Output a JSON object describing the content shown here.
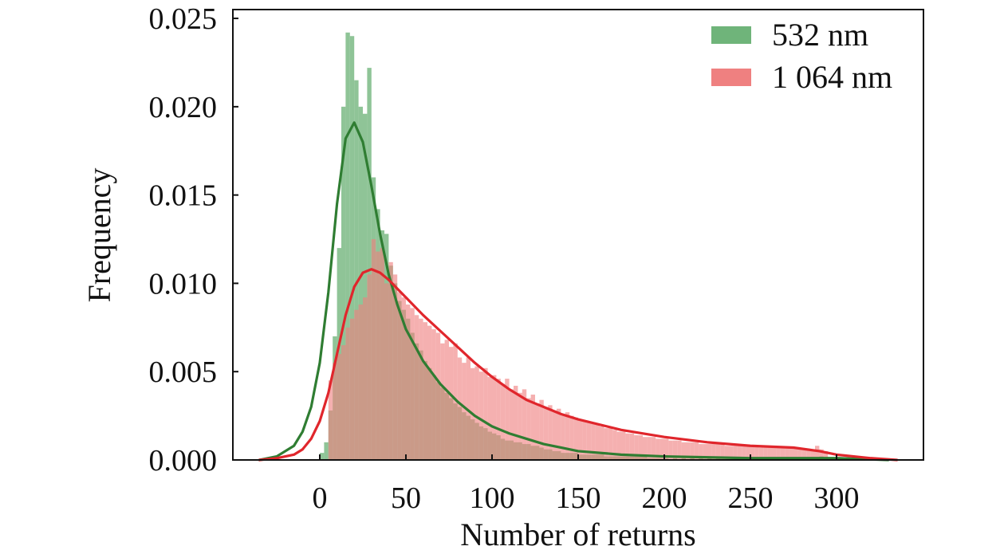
{
  "chart_data": {
    "type": "histogram",
    "xlabel": "Number of returns",
    "ylabel": "Frequency",
    "xlim": [
      -50,
      350
    ],
    "ylim": [
      0,
      0.0255
    ],
    "xticks": [
      0,
      50,
      100,
      150,
      200,
      250,
      300
    ],
    "xtick_labels": [
      "0",
      "50",
      "100",
      "150",
      "200",
      "250",
      "300"
    ],
    "yticks": [
      0,
      0.005,
      0.01,
      0.015,
      0.02,
      0.025
    ],
    "ytick_labels": [
      "0.000",
      "0.005",
      "0.010",
      "0.015",
      "0.020",
      "0.025"
    ],
    "legend_position": "top-right",
    "series": [
      {
        "name": "532 nm",
        "bar_color": "#6fb47a",
        "line_color": "#2f7d32",
        "bin_width": 2.5,
        "bins": [
          [
            0,
            0.0004
          ],
          [
            2.5,
            0.001
          ],
          [
            5,
            0.0028
          ],
          [
            7.5,
            0.007
          ],
          [
            10,
            0.012
          ],
          [
            12.5,
            0.02
          ],
          [
            15,
            0.0242
          ],
          [
            17.5,
            0.024
          ],
          [
            20,
            0.0215
          ],
          [
            22.5,
            0.02
          ],
          [
            25,
            0.0196
          ],
          [
            27.5,
            0.0222
          ],
          [
            30,
            0.016
          ],
          [
            32.5,
            0.0142
          ],
          [
            35,
            0.013
          ],
          [
            37.5,
            0.0128
          ],
          [
            40,
            0.011
          ],
          [
            42.5,
            0.01
          ],
          [
            45,
            0.009
          ],
          [
            47.5,
            0.0085
          ],
          [
            50,
            0.008
          ],
          [
            52.5,
            0.0072
          ],
          [
            55,
            0.0066
          ],
          [
            57.5,
            0.0062
          ],
          [
            60,
            0.0056
          ],
          [
            62.5,
            0.0052
          ],
          [
            65,
            0.0048
          ],
          [
            67.5,
            0.0044
          ],
          [
            70,
            0.0041
          ],
          [
            72.5,
            0.0038
          ],
          [
            75,
            0.0035
          ],
          [
            77.5,
            0.0032
          ],
          [
            80,
            0.003
          ],
          [
            82.5,
            0.0027
          ],
          [
            85,
            0.0025
          ],
          [
            87.5,
            0.0023
          ],
          [
            90,
            0.0021
          ],
          [
            92.5,
            0.0019
          ],
          [
            95,
            0.0018
          ],
          [
            97.5,
            0.0016
          ],
          [
            100,
            0.0015
          ],
          [
            102.5,
            0.0014
          ],
          [
            105,
            0.0012
          ],
          [
            107.5,
            0.0011
          ],
          [
            110,
            0.0011
          ],
          [
            112.5,
            0.001
          ],
          [
            115,
            0.001
          ],
          [
            117.5,
            0.0009
          ],
          [
            120,
            0.0009
          ],
          [
            122.5,
            0.0008
          ],
          [
            125,
            0.0008
          ],
          [
            127.5,
            0.0007
          ],
          [
            130,
            0.0006
          ],
          [
            132.5,
            0.0006
          ],
          [
            135,
            0.0005
          ],
          [
            137.5,
            0.0005
          ],
          [
            140,
            0.0004
          ],
          [
            142.5,
            0.0004
          ],
          [
            145,
            0.0004
          ],
          [
            147.5,
            0.0004
          ],
          [
            150,
            0.0003
          ],
          [
            152.5,
            0.0003
          ],
          [
            155,
            0.0003
          ],
          [
            157.5,
            0.0003
          ],
          [
            160,
            0.0003
          ],
          [
            162.5,
            0.0003
          ],
          [
            165,
            0.0002
          ],
          [
            167.5,
            0.0002
          ],
          [
            170,
            0.0002
          ],
          [
            172.5,
            0.0002
          ],
          [
            175,
            0.0002
          ],
          [
            177.5,
            0.0002
          ],
          [
            180,
            0.0002
          ],
          [
            182.5,
            0.0002
          ],
          [
            185,
            0.0002
          ],
          [
            187.5,
            0.0002
          ],
          [
            190,
            0.0001
          ],
          [
            192.5,
            0.0001
          ],
          [
            195,
            0.0001
          ],
          [
            197.5,
            0.0001
          ],
          [
            200,
            0.0001
          ],
          [
            205,
            0.0001
          ],
          [
            210,
            0.0001
          ],
          [
            215,
            0.0001
          ],
          [
            220,
            0.0001
          ],
          [
            225,
            0.0001
          ],
          [
            230,
            0.0001
          ],
          [
            240,
            0.0001
          ],
          [
            250,
            0.0001
          ],
          [
            260,
            0.0001
          ],
          [
            270,
            0.0001
          ],
          [
            280,
            0.0001
          ],
          [
            290,
            0.0002
          ]
        ],
        "kde": {
          "x": [
            -35,
            -25,
            -15,
            -10,
            -5,
            0,
            5,
            10,
            15,
            20,
            25,
            30,
            35,
            40,
            45,
            50,
            60,
            70,
            80,
            90,
            100,
            110,
            120,
            130,
            140,
            150,
            175,
            200,
            250,
            300,
            330
          ],
          "y": [
            0.0,
            0.0002,
            0.0008,
            0.0016,
            0.003,
            0.0055,
            0.0095,
            0.0145,
            0.0182,
            0.0191,
            0.018,
            0.0155,
            0.0128,
            0.0105,
            0.0088,
            0.0074,
            0.0056,
            0.0043,
            0.0033,
            0.0025,
            0.0019,
            0.0015,
            0.0012,
            0.0009,
            0.0007,
            0.0005,
            0.0003,
            0.0002,
            0.0001,
            0.0001,
            0.0
          ]
        }
      },
      {
        "name": "1 064 nm",
        "bar_color": "#ef8080",
        "line_color": "#e0262c",
        "bin_width": 2.5,
        "bins": [
          [
            5,
            0.0045
          ],
          [
            7.5,
            0.0055
          ],
          [
            10,
            0.006
          ],
          [
            12.5,
            0.0065
          ],
          [
            15,
            0.0075
          ],
          [
            17.5,
            0.008
          ],
          [
            20,
            0.0085
          ],
          [
            22.5,
            0.0088
          ],
          [
            25,
            0.0092
          ],
          [
            27.5,
            0.0105
          ],
          [
            30,
            0.0125
          ],
          [
            32.5,
            0.0118
          ],
          [
            35,
            0.012
          ],
          [
            37.5,
            0.01
          ],
          [
            40,
            0.0112
          ],
          [
            42.5,
            0.0105
          ],
          [
            45,
            0.0095
          ],
          [
            47.5,
            0.0092
          ],
          [
            50,
            0.0088
          ],
          [
            52.5,
            0.0086
          ],
          [
            55,
            0.0082
          ],
          [
            57.5,
            0.008
          ],
          [
            60,
            0.0078
          ],
          [
            62.5,
            0.0076
          ],
          [
            65,
            0.0074
          ],
          [
            67.5,
            0.0072
          ],
          [
            70,
            0.0066
          ],
          [
            72.5,
            0.0068
          ],
          [
            75,
            0.0064
          ],
          [
            77.5,
            0.0066
          ],
          [
            80,
            0.0058
          ],
          [
            82.5,
            0.0055
          ],
          [
            85,
            0.0058
          ],
          [
            87.5,
            0.0052
          ],
          [
            90,
            0.0053
          ],
          [
            92.5,
            0.005
          ],
          [
            95,
            0.0052
          ],
          [
            97.5,
            0.0047
          ],
          [
            100,
            0.0048
          ],
          [
            102.5,
            0.0046
          ],
          [
            105,
            0.0043
          ],
          [
            107.5,
            0.0046
          ],
          [
            110,
            0.004
          ],
          [
            112.5,
            0.0042
          ],
          [
            115,
            0.0038
          ],
          [
            117.5,
            0.004
          ],
          [
            120,
            0.0035
          ],
          [
            122.5,
            0.0037
          ],
          [
            125,
            0.0032
          ],
          [
            127.5,
            0.0034
          ],
          [
            130,
            0.003
          ],
          [
            132.5,
            0.0031
          ],
          [
            135,
            0.0028
          ],
          [
            137.5,
            0.0029
          ],
          [
            140,
            0.0026
          ],
          [
            142.5,
            0.0027
          ],
          [
            145,
            0.0025
          ],
          [
            147.5,
            0.0024
          ],
          [
            150,
            0.0023
          ],
          [
            152.5,
            0.0022
          ],
          [
            155,
            0.0021
          ],
          [
            157.5,
            0.0021
          ],
          [
            160,
            0.002
          ],
          [
            162.5,
            0.0019
          ],
          [
            165,
            0.0018
          ],
          [
            167.5,
            0.0018
          ],
          [
            170,
            0.0017
          ],
          [
            172.5,
            0.0016
          ],
          [
            175,
            0.0016
          ],
          [
            177.5,
            0.0015
          ],
          [
            180,
            0.0015
          ],
          [
            182.5,
            0.0014
          ],
          [
            185,
            0.0014
          ],
          [
            187.5,
            0.0013
          ],
          [
            190,
            0.0013
          ],
          [
            192.5,
            0.0013
          ],
          [
            195,
            0.0012
          ],
          [
            197.5,
            0.0012
          ],
          [
            200,
            0.0012
          ],
          [
            202.5,
            0.0011
          ],
          [
            205,
            0.0011
          ],
          [
            207.5,
            0.0011
          ],
          [
            210,
            0.001
          ],
          [
            212.5,
            0.001
          ],
          [
            215,
            0.001
          ],
          [
            217.5,
            0.001
          ],
          [
            220,
            0.0009
          ],
          [
            222.5,
            0.0009
          ],
          [
            225,
            0.0009
          ],
          [
            227.5,
            0.0009
          ],
          [
            230,
            0.0009
          ],
          [
            232.5,
            0.0009
          ],
          [
            235,
            0.0008
          ],
          [
            237.5,
            0.0008
          ],
          [
            240,
            0.0008
          ],
          [
            242.5,
            0.0008
          ],
          [
            245,
            0.0008
          ],
          [
            247.5,
            0.0008
          ],
          [
            250,
            0.0008
          ],
          [
            252.5,
            0.0008
          ],
          [
            255,
            0.0007
          ],
          [
            257.5,
            0.0007
          ],
          [
            260,
            0.0007
          ],
          [
            262.5,
            0.0007
          ],
          [
            265,
            0.0007
          ],
          [
            267.5,
            0.0007
          ],
          [
            270,
            0.0007
          ],
          [
            272.5,
            0.0007
          ],
          [
            275,
            0.0007
          ],
          [
            277.5,
            0.0007
          ],
          [
            280,
            0.0006
          ],
          [
            282.5,
            0.0006
          ],
          [
            285,
            0.0006
          ],
          [
            287.5,
            0.0008
          ],
          [
            290,
            0.0006
          ],
          [
            292.5,
            0.0005
          ]
        ],
        "kde": {
          "x": [
            -35,
            -25,
            -15,
            -10,
            -5,
            0,
            5,
            10,
            15,
            20,
            25,
            30,
            35,
            40,
            45,
            50,
            60,
            70,
            80,
            90,
            100,
            110,
            120,
            130,
            140,
            150,
            175,
            200,
            225,
            250,
            275,
            290,
            300,
            310,
            320,
            335
          ],
          "y": [
            0.0,
            0.0001,
            0.0003,
            0.0006,
            0.0012,
            0.0022,
            0.0038,
            0.006,
            0.0082,
            0.0098,
            0.0106,
            0.0108,
            0.0106,
            0.0102,
            0.0097,
            0.0092,
            0.0082,
            0.0073,
            0.0064,
            0.0055,
            0.0047,
            0.004,
            0.0034,
            0.003,
            0.0026,
            0.0023,
            0.0017,
            0.0013,
            0.001,
            0.0008,
            0.0007,
            0.0005,
            0.0003,
            0.0002,
            0.0001,
            0.0
          ]
        }
      }
    ]
  }
}
